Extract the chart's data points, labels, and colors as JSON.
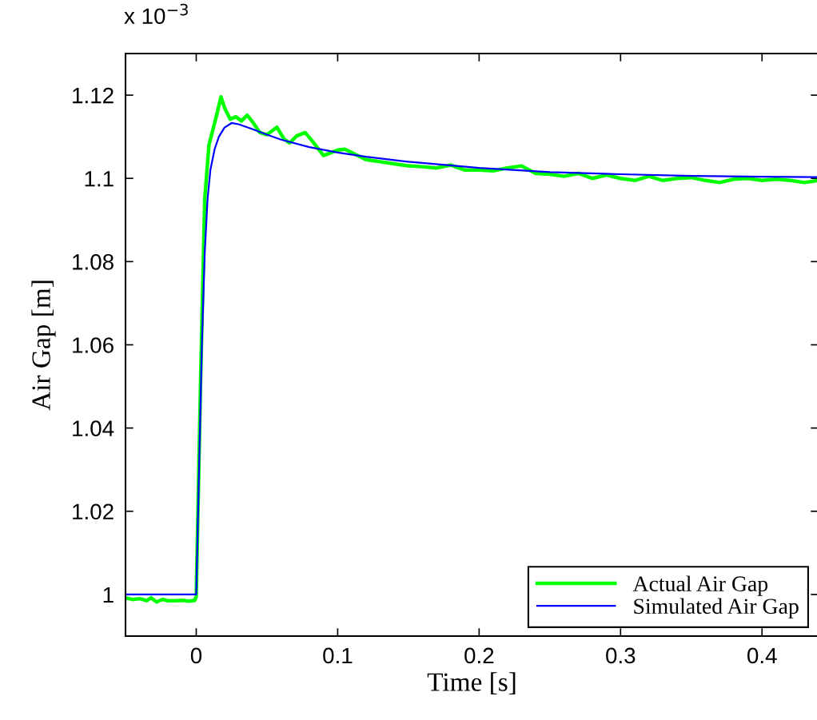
{
  "chart_data": {
    "type": "line",
    "xlabel": "Time [s]",
    "ylabel": "Air Gap [m]",
    "annotations": [
      "x 10$^{−3}$"
    ],
    "xlim": [
      -0.05,
      0.44
    ],
    "xticks": [
      0,
      0.1,
      0.2,
      0.3,
      0.4
    ],
    "ylim": [
      0.99,
      1.13
    ],
    "yticks": [
      1,
      1.02,
      1.04,
      1.06,
      1.08,
      1.1,
      1.12
    ],
    "grid": false,
    "legend": "bottom right",
    "line_style": "solid",
    "marker": "none",
    "series": [
      {
        "name": "Actual Air Gap",
        "color": "#00ff00",
        "x": [
          -0.05,
          -0.045,
          -0.04,
          -0.035,
          -0.032,
          -0.028,
          -0.024,
          -0.02,
          -0.015,
          -0.01,
          -0.005,
          -0.001,
          0.0,
          0.003,
          0.006,
          0.009,
          0.012,
          0.015,
          0.0175,
          0.02,
          0.024,
          0.028,
          0.032,
          0.036,
          0.04,
          0.045,
          0.05,
          0.057,
          0.062,
          0.066,
          0.071,
          0.077,
          0.082,
          0.09,
          0.1,
          0.105,
          0.11,
          0.12,
          0.13,
          0.14,
          0.15,
          0.16,
          0.17,
          0.18,
          0.19,
          0.2,
          0.21,
          0.22,
          0.23,
          0.24,
          0.25,
          0.26,
          0.27,
          0.28,
          0.29,
          0.3,
          0.31,
          0.32,
          0.33,
          0.34,
          0.35,
          0.36,
          0.37,
          0.38,
          0.39,
          0.4,
          0.41,
          0.42,
          0.43,
          0.44
        ],
        "values": [
          0.9992,
          0.9988,
          0.999,
          0.9985,
          0.9992,
          0.9982,
          0.9988,
          0.9985,
          0.9985,
          0.9986,
          0.9984,
          0.9986,
          0.9995,
          1.05,
          1.095,
          1.108,
          1.112,
          1.116,
          1.1196,
          1.117,
          1.1142,
          1.1148,
          1.1138,
          1.1152,
          1.1135,
          1.111,
          1.1105,
          1.1123,
          1.1095,
          1.1085,
          1.1102,
          1.111,
          1.109,
          1.1055,
          1.1068,
          1.107,
          1.1062,
          1.1045,
          1.104,
          1.1035,
          1.103,
          1.1028,
          1.1025,
          1.1032,
          1.102,
          1.102,
          1.1018,
          1.1025,
          1.103,
          1.1012,
          1.101,
          1.1005,
          1.1012,
          1.1,
          1.1008,
          1.1,
          1.0995,
          1.1005,
          1.0995,
          1.1,
          1.1002,
          1.0995,
          1.099,
          1.0998,
          1.1,
          1.0995,
          1.0998,
          1.0995,
          1.099,
          1.0995
        ]
      },
      {
        "name": "Simulated Air Gap",
        "color": "#0000ff",
        "x": [
          -0.05,
          0.0,
          0.002,
          0.004,
          0.006,
          0.008,
          0.01,
          0.013,
          0.016,
          0.02,
          0.025,
          0.03,
          0.04,
          0.05,
          0.06,
          0.08,
          0.1,
          0.12,
          0.15,
          0.2,
          0.25,
          0.3,
          0.35,
          0.4,
          0.44
        ],
        "values": [
          1.0,
          1.0,
          1.03,
          1.06,
          1.082,
          1.095,
          1.102,
          1.107,
          1.11,
          1.1122,
          1.1133,
          1.113,
          1.1118,
          1.1105,
          1.1093,
          1.1075,
          1.1062,
          1.1052,
          1.104,
          1.1025,
          1.1015,
          1.101,
          1.1006,
          1.1004,
          1.1003
        ]
      }
    ]
  }
}
